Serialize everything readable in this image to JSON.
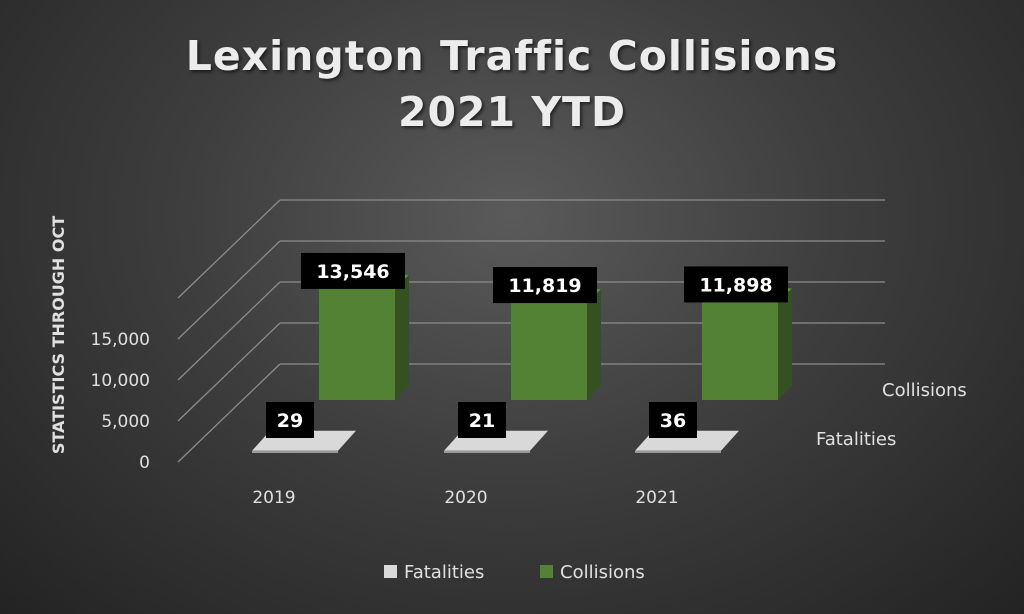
{
  "chart_data": {
    "type": "bar",
    "title": [
      "Lexington Traffic Collisions",
      "2021 YTD"
    ],
    "ylabel": "STATISTICS THROUGH OCT",
    "categories": [
      "2019",
      "2020",
      "2021"
    ],
    "series": [
      {
        "name": "Fatalities",
        "values": [
          29,
          21,
          36
        ],
        "labels": [
          "29",
          "21",
          "36"
        ],
        "color": "#d9d9d9"
      },
      {
        "name": "Collisions",
        "values": [
          13546,
          11819,
          11898
        ],
        "labels": [
          "13,546",
          "11,819",
          "11,898"
        ],
        "color": "#548235"
      }
    ],
    "yticks": [
      0,
      5000,
      10000,
      15000
    ],
    "ytick_labels": [
      "0",
      "5,000",
      "10,000",
      "15,000"
    ],
    "ylim": [
      0,
      20000
    ],
    "grid": true,
    "legend": {
      "position": "bottom",
      "entries": [
        "Fatalities",
        "Collisions"
      ]
    },
    "colors": {
      "background": "#3a3a3a",
      "text": "#e0e0e0",
      "label_box": "#000000"
    }
  }
}
